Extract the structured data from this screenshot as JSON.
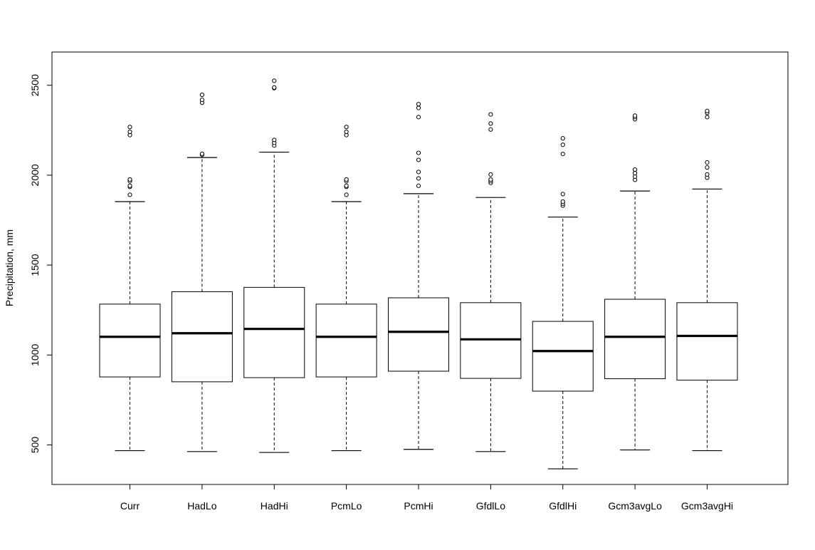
{
  "chart_data": {
    "type": "box",
    "title": "",
    "xlabel": "",
    "ylabel": "Precipitation, mm",
    "ylim": [
      280,
      2685
    ],
    "yticks": [
      500,
      1000,
      1500,
      2000,
      2500
    ],
    "grid": false,
    "categories": [
      "Curr",
      "HadLo",
      "HadHi",
      "PcmLo",
      "PcmHi",
      "GfdlLo",
      "GfdlHi",
      "Gcm3avgLo",
      "Gcm3avgHi"
    ],
    "boxes": [
      {
        "name": "Curr",
        "whisker_low": 468,
        "q1": 878,
        "median": 1101,
        "q3": 1283,
        "whisker_high": 1853,
        "outliers": [
          1891,
          1935,
          1941,
          1967,
          1976,
          2223,
          2241,
          2268
        ]
      },
      {
        "name": "HadLo",
        "whisker_low": 463,
        "q1": 851,
        "median": 1121,
        "q3": 1352,
        "whisker_high": 2098,
        "outliers": [
          2113,
          2119,
          2403,
          2419,
          2447
        ]
      },
      {
        "name": "HadHi",
        "whisker_low": 458,
        "q1": 874,
        "median": 1145,
        "q3": 1376,
        "whisker_high": 2128,
        "outliers": [
          2165,
          2180,
          2196,
          2484,
          2488,
          2525
        ]
      },
      {
        "name": "PcmLo",
        "whisker_low": 468,
        "q1": 878,
        "median": 1101,
        "q3": 1283,
        "whisker_high": 1853,
        "outliers": [
          1891,
          1935,
          1941,
          1967,
          1976,
          2223,
          2241,
          2268
        ]
      },
      {
        "name": "PcmHi",
        "whisker_low": 475,
        "q1": 910,
        "median": 1129,
        "q3": 1318,
        "whisker_high": 1897,
        "outliers": [
          1941,
          1982,
          2018,
          2085,
          2124,
          2323,
          2374,
          2395
        ]
      },
      {
        "name": "GfdlLo",
        "whisker_low": 463,
        "q1": 870,
        "median": 1087,
        "q3": 1291,
        "whisker_high": 1876,
        "outliers": [
          1957,
          1967,
          1976,
          2004,
          2254,
          2287,
          2338
        ]
      },
      {
        "name": "GfdlHi",
        "whisker_low": 367,
        "q1": 799,
        "median": 1022,
        "q3": 1187,
        "whisker_high": 1767,
        "outliers": [
          1831,
          1842,
          1853,
          1895,
          2118,
          2169,
          2205
        ]
      },
      {
        "name": "Gcm3avgLo",
        "whisker_low": 472,
        "q1": 868,
        "median": 1101,
        "q3": 1310,
        "whisker_high": 1912,
        "outliers": [
          1974,
          1992,
          2011,
          2031,
          2311,
          2323,
          2331
        ]
      },
      {
        "name": "Gcm3avgHi",
        "whisker_low": 468,
        "q1": 860,
        "median": 1106,
        "q3": 1291,
        "whisker_high": 1923,
        "outliers": [
          1986,
          2004,
          2043,
          2071,
          2323,
          2346,
          2357
        ]
      }
    ]
  },
  "colors": {
    "box_stroke": "#000000",
    "background": "#ffffff",
    "outlier_fill": "#ffffff"
  }
}
